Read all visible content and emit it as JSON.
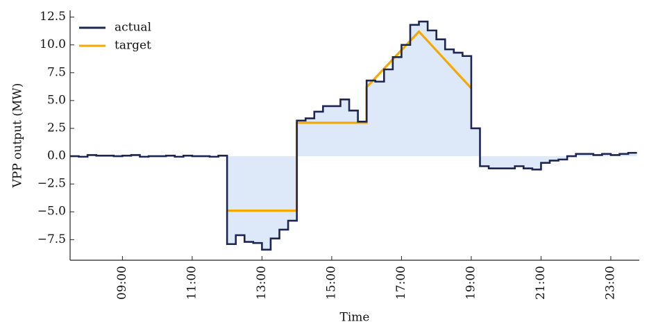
{
  "chart_data": {
    "type": "line",
    "xlabel": "Time",
    "ylabel": "VPP output (MW)",
    "xlim": [
      "07:30",
      "23:49"
    ],
    "xticks": [
      "09:00",
      "11:00",
      "13:00",
      "15:00",
      "17:00",
      "19:00",
      "21:00",
      "23:00"
    ],
    "ylim": [
      -9.35,
      13.1
    ],
    "yticks": [
      {
        "value": -7.5,
        "label": "−7.5"
      },
      {
        "value": -5,
        "label": "−5.0"
      },
      {
        "value": -2.5,
        "label": "−2.5"
      },
      {
        "value": 0,
        "label": "0.0"
      },
      2.5,
      {
        "value": 5,
        "label": "5.0"
      },
      7.5,
      {
        "value": 10,
        "label": "10.0"
      },
      12.5
    ],
    "legend": "upper left",
    "fill_color": "#dde9f9",
    "series": [
      {
        "name": "actual",
        "color": "#1c2650",
        "step": true,
        "x": [
          "07:30",
          "07:45",
          "08:00",
          "08:15",
          "08:30",
          "08:45",
          "09:00",
          "09:15",
          "09:30",
          "09:45",
          "10:00",
          "10:15",
          "10:30",
          "10:45",
          "11:00",
          "11:15",
          "11:30",
          "11:45",
          "12:00",
          "12:15",
          "12:30",
          "12:45",
          "13:00",
          "13:15",
          "13:30",
          "13:45",
          "14:00",
          "14:15",
          "14:30",
          "14:45",
          "15:00",
          "15:15",
          "15:30",
          "15:45",
          "16:00",
          "16:15",
          "16:30",
          "16:45",
          "17:00",
          "17:15",
          "17:30",
          "17:45",
          "18:00",
          "18:15",
          "18:30",
          "18:45",
          "19:00",
          "19:15",
          "19:30",
          "19:45",
          "20:00",
          "20:15",
          "20:30",
          "20:45",
          "21:00",
          "21:15",
          "21:30",
          "21:45",
          "22:00",
          "22:15",
          "22:30",
          "22:45",
          "23:00",
          "23:15",
          "23:30"
        ],
        "values": [
          0,
          -0.05,
          0.1,
          0.05,
          0.05,
          0,
          0.05,
          0.1,
          -0.05,
          0,
          0,
          0.05,
          -0.05,
          0.05,
          0,
          0,
          -0.05,
          0.05,
          -7.9,
          -7.1,
          -7.7,
          -7.8,
          -8.4,
          -7.4,
          -6.6,
          -5.8,
          3.2,
          3.4,
          4.0,
          4.5,
          4.5,
          5.1,
          4.1,
          3.1,
          6.8,
          6.7,
          7.8,
          8.9,
          10.0,
          11.8,
          12.1,
          11.3,
          10.5,
          9.6,
          9.3,
          9.0,
          2.5,
          -0.9,
          -1.1,
          -1.1,
          -1.1,
          -0.9,
          -1.1,
          -1.2,
          -0.6,
          -0.4,
          -0.3,
          0.0,
          0.2,
          0.2,
          0.1,
          0.2,
          0.1,
          0.2,
          0.3
        ]
      },
      {
        "name": "target",
        "color": "#f5a900",
        "step": false,
        "x": [
          "12:00",
          "14:00",
          "14:00",
          "16:00",
          "16:00",
          "17:30",
          "19:00"
        ],
        "values": [
          -4.9,
          -4.9,
          3.0,
          3.0,
          6.2,
          11.2,
          6.1
        ]
      }
    ]
  }
}
